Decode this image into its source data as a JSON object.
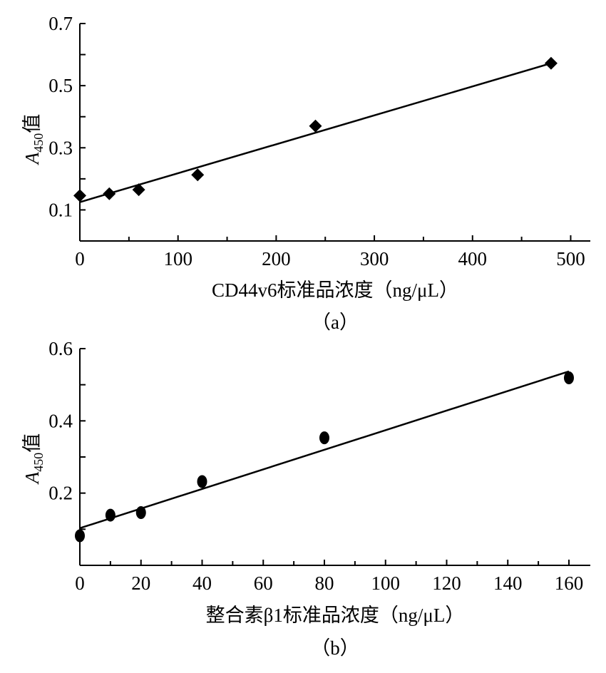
{
  "chart_data": [
    {
      "type": "scatter",
      "panel_label": "（a）",
      "xlabel": "CD44v6标准品浓度（ng/μL）",
      "ylabel_main": "A",
      "ylabel_sub": "450",
      "ylabel_suffix": "值",
      "xlim": [
        0,
        520
      ],
      "ylim": [
        0.0,
        0.7
      ],
      "xticks": [
        0,
        100,
        200,
        300,
        400,
        500
      ],
      "yticks_labeled": [
        0.1,
        0.3,
        0.5,
        0.7
      ],
      "yticks_minor": [
        0.2,
        0.4,
        0.6
      ],
      "x_minor_ticks": [
        50,
        150,
        250,
        350,
        450
      ],
      "marker": "diamond",
      "grid": false,
      "points": [
        {
          "x": 0,
          "y": 0.146
        },
        {
          "x": 30,
          "y": 0.152
        },
        {
          "x": 60,
          "y": 0.165
        },
        {
          "x": 120,
          "y": 0.213
        },
        {
          "x": 240,
          "y": 0.37
        },
        {
          "x": 480,
          "y": 0.572
        }
      ],
      "trendline": {
        "x": [
          0,
          480
        ],
        "y": [
          0.125,
          0.572
        ]
      }
    },
    {
      "type": "scatter",
      "panel_label": "（b）",
      "xlabel": "整合素β1标准品浓度（ng/μL）",
      "ylabel_main": "A",
      "ylabel_sub": "450",
      "ylabel_suffix": "值",
      "xlim": [
        0,
        167
      ],
      "ylim": [
        0.0,
        0.6
      ],
      "xticks": [
        0,
        20,
        40,
        60,
        80,
        100,
        120,
        140,
        160
      ],
      "yticks_labeled": [
        0.2,
        0.4,
        0.6
      ],
      "yticks_minor": [
        0.1,
        0.3,
        0.5
      ],
      "x_minor_ticks": [
        10,
        30,
        50,
        70,
        90,
        110,
        130,
        150
      ],
      "marker": "circle",
      "grid": false,
      "points": [
        {
          "x": 0,
          "y": 0.082
        },
        {
          "x": 10,
          "y": 0.139
        },
        {
          "x": 20,
          "y": 0.146
        },
        {
          "x": 40,
          "y": 0.232
        },
        {
          "x": 80,
          "y": 0.353
        },
        {
          "x": 160,
          "y": 0.519
        }
      ],
      "trendline": {
        "x": [
          0,
          160
        ],
        "y": [
          0.103,
          0.537
        ]
      }
    }
  ]
}
